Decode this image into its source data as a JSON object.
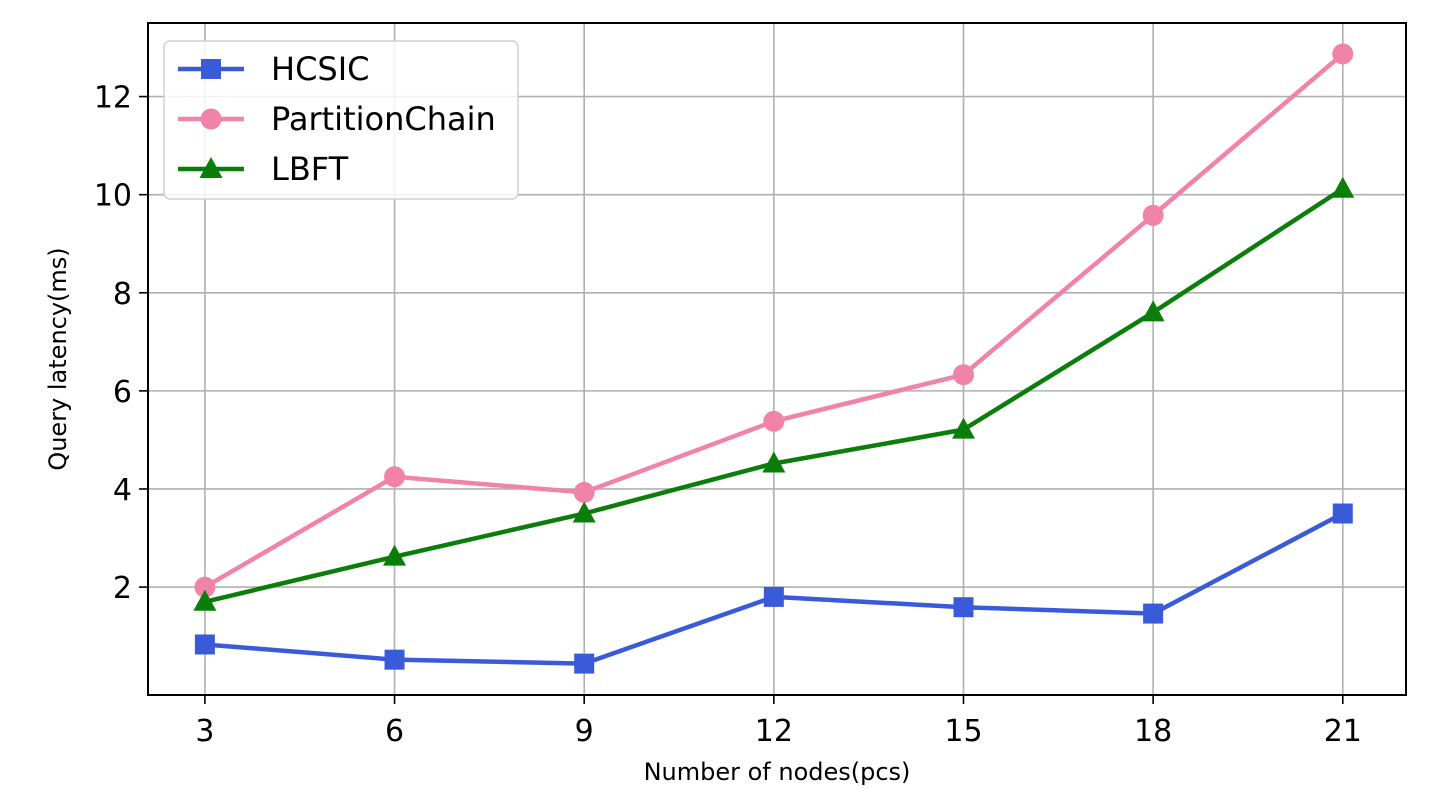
{
  "chart_data": {
    "type": "line",
    "xlabel": "Number of nodes(pcs)",
    "ylabel": "Query latency(ms)",
    "x": [
      3,
      6,
      9,
      12,
      15,
      18,
      21
    ],
    "xticks": [
      "3",
      "6",
      "9",
      "12",
      "15",
      "18",
      "21"
    ],
    "yticks": [
      2,
      4,
      6,
      8,
      10,
      12
    ],
    "ytick_labels": [
      "2",
      "4",
      "6",
      "8",
      "10",
      "12"
    ],
    "xlim": [
      2.1,
      22.0
    ],
    "ylim": [
      -0.2,
      13.5
    ],
    "grid": true,
    "legend_position": "top-left",
    "series": [
      {
        "name": "HCSIC",
        "marker": "square",
        "color": "#3a5bd9",
        "values": [
          0.83,
          0.52,
          0.44,
          1.8,
          1.59,
          1.46,
          3.5
        ]
      },
      {
        "name": "PartitionChain",
        "marker": "circle",
        "color": "#f283a8",
        "values": [
          2.0,
          4.25,
          3.93,
          5.38,
          6.33,
          9.58,
          12.87
        ]
      },
      {
        "name": "LBFT",
        "marker": "triangle",
        "color": "#0a7d0a",
        "values": [
          1.7,
          2.62,
          3.5,
          4.52,
          5.21,
          7.6,
          10.12
        ]
      }
    ]
  }
}
